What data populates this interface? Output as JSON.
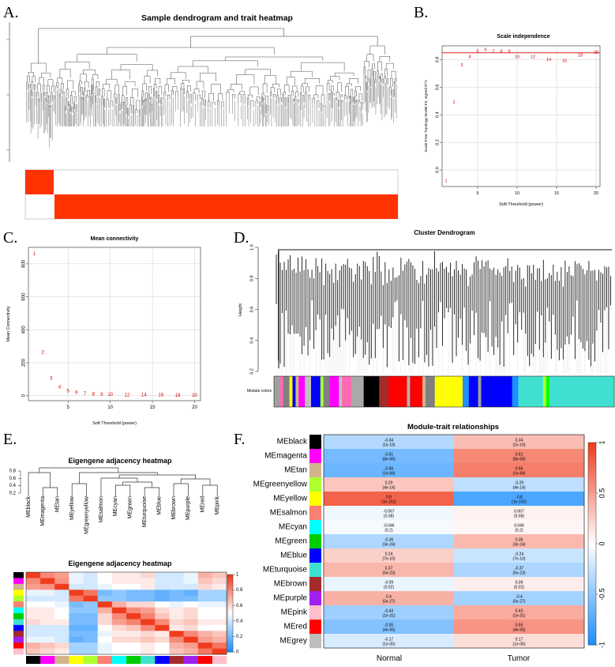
{
  "figure": {
    "panels": [
      {
        "letter": "A."
      },
      {
        "letter": "B."
      },
      {
        "letter": "C."
      },
      {
        "letter": "D."
      },
      {
        "letter": "E."
      },
      {
        "letter": "F."
      }
    ]
  },
  "chart_data": [
    {
      "id": "A",
      "type": "dendrogram",
      "title": "Sample dendrogram and trait heatmap",
      "trait_colors": [
        "#ff3300",
        "#ffffff"
      ]
    },
    {
      "id": "B",
      "type": "scatter",
      "title": "Scale independence",
      "xlabel": "Soft Threshold (power)",
      "ylabel": "Scale Free Topology Model Fit, signed R^2",
      "xlim": [
        0.5,
        20.5
      ],
      "ylim": [
        -0.12,
        0.9
      ],
      "xticks": [
        5,
        10,
        15,
        20
      ],
      "yticks": [
        0.0,
        0.2,
        0.4,
        0.6,
        0.8
      ],
      "ytick_labels": [
        "0.0",
        "0.2",
        "0.4",
        "0.6",
        "0.8"
      ],
      "hline": 0.85,
      "points": [
        {
          "x": 1,
          "y": -0.08,
          "label": "1"
        },
        {
          "x": 2,
          "y": 0.49,
          "label": "2"
        },
        {
          "x": 3,
          "y": 0.76,
          "label": "3"
        },
        {
          "x": 4,
          "y": 0.82,
          "label": "4"
        },
        {
          "x": 5,
          "y": 0.86,
          "label": "5"
        },
        {
          "x": 6,
          "y": 0.87,
          "label": "6"
        },
        {
          "x": 7,
          "y": 0.86,
          "label": "7"
        },
        {
          "x": 8,
          "y": 0.86,
          "label": "8"
        },
        {
          "x": 9,
          "y": 0.86,
          "label": "9"
        },
        {
          "x": 10,
          "y": 0.82,
          "label": "10"
        },
        {
          "x": 12,
          "y": 0.82,
          "label": "12"
        },
        {
          "x": 14,
          "y": 0.8,
          "label": "14"
        },
        {
          "x": 16,
          "y": 0.79,
          "label": "16"
        },
        {
          "x": 18,
          "y": 0.83,
          "label": "18"
        },
        {
          "x": 20,
          "y": 0.85,
          "label": "20"
        }
      ]
    },
    {
      "id": "C",
      "type": "scatter",
      "title": "Mean connectivity",
      "xlabel": "Soft Threshold (power)",
      "ylabel": "Mean Connectivity",
      "xlim": [
        0.3,
        20.7
      ],
      "ylim": [
        -30,
        900
      ],
      "xticks": [
        5,
        10,
        15,
        20
      ],
      "yticks": [
        0,
        200,
        400,
        600,
        800
      ],
      "points": [
        {
          "x": 1,
          "y": 860,
          "label": "1"
        },
        {
          "x": 2,
          "y": 262,
          "label": "2"
        },
        {
          "x": 3,
          "y": 105,
          "label": "3"
        },
        {
          "x": 4,
          "y": 52,
          "label": "4"
        },
        {
          "x": 5,
          "y": 28,
          "label": "5"
        },
        {
          "x": 6,
          "y": 18,
          "label": "6"
        },
        {
          "x": 7,
          "y": 12,
          "label": "7"
        },
        {
          "x": 8,
          "y": 9,
          "label": "8"
        },
        {
          "x": 9,
          "y": 7,
          "label": "9"
        },
        {
          "x": 10,
          "y": 6,
          "label": "10"
        },
        {
          "x": 12,
          "y": 4,
          "label": "12"
        },
        {
          "x": 14,
          "y": 3,
          "label": "14"
        },
        {
          "x": 16,
          "y": 3,
          "label": "16"
        },
        {
          "x": 18,
          "y": 2,
          "label": "18"
        },
        {
          "x": 20,
          "y": 2,
          "label": "20"
        }
      ]
    },
    {
      "id": "D",
      "type": "dendrogram",
      "title": "Cluster Dendrogram",
      "ylabel": "Height",
      "yticks": [
        0.2,
        0.4,
        0.6,
        0.8,
        1.0
      ],
      "ytick_labels": [
        "0.2",
        "0.4",
        "0.6",
        "0.8",
        "1.0"
      ],
      "color_bar_label": "Module colors",
      "module_color_segments": [
        {
          "color": "#a0a0a0",
          "weight": 2
        },
        {
          "color": "#ff69b4",
          "weight": 1
        },
        {
          "color": "#808080",
          "weight": 2
        },
        {
          "color": "#ffff00",
          "weight": 1
        },
        {
          "color": "#0000ff",
          "weight": 1
        },
        {
          "color": "#d2b48c",
          "weight": 1
        },
        {
          "color": "#ff00ff",
          "weight": 2
        },
        {
          "color": "#c0c0c0",
          "weight": 2
        },
        {
          "color": "#0000ff",
          "weight": 3
        },
        {
          "color": "#adff2f",
          "weight": 1
        },
        {
          "color": "#808080",
          "weight": 2
        },
        {
          "color": "#ff00ff",
          "weight": 3
        },
        {
          "color": "#c0c0c0",
          "weight": 1
        },
        {
          "color": "#ff69b4",
          "weight": 3
        },
        {
          "color": "#a9a9a9",
          "weight": 4
        },
        {
          "color": "#000000",
          "weight": 5
        },
        {
          "color": "#a52a2a",
          "weight": 3
        },
        {
          "color": "#ff0000",
          "weight": 6
        },
        {
          "color": "#b0b0b0",
          "weight": 1
        },
        {
          "color": "#ff0000",
          "weight": 4
        },
        {
          "color": "#d2b48c",
          "weight": 1
        },
        {
          "color": "#808080",
          "weight": 3
        },
        {
          "color": "#ffff00",
          "weight": 9
        },
        {
          "color": "#1e90ff",
          "weight": 2
        },
        {
          "color": "#0000ff",
          "weight": 3
        },
        {
          "color": "#a0a0a0",
          "weight": 1
        },
        {
          "color": "#0000ff",
          "weight": 10
        },
        {
          "color": "#1e90ff",
          "weight": 2
        },
        {
          "color": "#40e0d0",
          "weight": 8
        },
        {
          "color": "#adff2f",
          "weight": 1
        },
        {
          "color": "#00ff00",
          "weight": 1
        },
        {
          "color": "#40e0d0",
          "weight": 21
        }
      ]
    },
    {
      "id": "E1",
      "type": "dendrogram",
      "title": "Eigengene adjacency heatmap",
      "yticks": [
        0.2,
        0.4,
        0.6,
        0.8
      ],
      "ytick_labels": [
        "0.2",
        "0.4",
        "0.6",
        "0.8"
      ],
      "leaves": [
        "MEblack",
        "MEmagenta",
        "MEtan",
        "MEyellow",
        "MEgreenyellow",
        "MEsalmon",
        "MEcyan",
        "MEgreen",
        "MEturquoise",
        "MEblue",
        "MEbrown",
        "MEpurple",
        "MEred",
        "MEpink"
      ]
    },
    {
      "id": "E2",
      "type": "heatmap",
      "title": "Eigengene adjacency heatmap",
      "colorscale_ticks": [
        0,
        0.2,
        0.4,
        0.6,
        0.8,
        1
      ],
      "colorscale_tick_labels": [
        "0",
        "0.2",
        "0.4",
        "0.6",
        "0.8",
        "1"
      ],
      "module_colors": [
        "#000000",
        "#ff00ff",
        "#d2b48c",
        "#ffff00",
        "#adff2f",
        "#fa8072",
        "#00ffff",
        "#00cc00",
        "#40e0d0",
        "#0000ff",
        "#a52a2a",
        "#a020f0",
        "#ff0000",
        "#ffc0cb"
      ],
      "matrix": [
        [
          1.0,
          0.8,
          0.75,
          0.45,
          0.4,
          0.5,
          0.55,
          0.55,
          0.6,
          0.4,
          0.4,
          0.45,
          0.7,
          0.65
        ],
        [
          0.8,
          1.0,
          0.78,
          0.45,
          0.4,
          0.5,
          0.55,
          0.55,
          0.55,
          0.4,
          0.4,
          0.45,
          0.65,
          0.6
        ],
        [
          0.75,
          0.78,
          1.0,
          0.4,
          0.4,
          0.45,
          0.5,
          0.5,
          0.55,
          0.4,
          0.4,
          0.4,
          0.6,
          0.55
        ],
        [
          0.45,
          0.45,
          0.4,
          1.0,
          0.85,
          0.2,
          0.25,
          0.2,
          0.2,
          0.15,
          0.2,
          0.15,
          0.3,
          0.3
        ],
        [
          0.4,
          0.4,
          0.4,
          0.85,
          1.0,
          0.25,
          0.25,
          0.2,
          0.2,
          0.15,
          0.2,
          0.2,
          0.3,
          0.3
        ],
        [
          0.5,
          0.5,
          0.45,
          0.2,
          0.25,
          1.0,
          0.7,
          0.6,
          0.6,
          0.5,
          0.45,
          0.5,
          0.45,
          0.45
        ],
        [
          0.55,
          0.55,
          0.5,
          0.25,
          0.25,
          0.7,
          1.0,
          0.8,
          0.75,
          0.6,
          0.55,
          0.6,
          0.5,
          0.5
        ],
        [
          0.55,
          0.55,
          0.5,
          0.2,
          0.2,
          0.6,
          0.8,
          1.0,
          0.82,
          0.65,
          0.55,
          0.6,
          0.5,
          0.5
        ],
        [
          0.6,
          0.55,
          0.55,
          0.2,
          0.2,
          0.6,
          0.75,
          0.82,
          1.0,
          0.8,
          0.6,
          0.65,
          0.55,
          0.55
        ],
        [
          0.4,
          0.4,
          0.4,
          0.15,
          0.15,
          0.5,
          0.6,
          0.65,
          0.8,
          1.0,
          0.55,
          0.6,
          0.5,
          0.5
        ],
        [
          0.4,
          0.4,
          0.4,
          0.2,
          0.2,
          0.45,
          0.55,
          0.55,
          0.6,
          0.55,
          1.0,
          0.8,
          0.7,
          0.65
        ],
        [
          0.45,
          0.45,
          0.4,
          0.15,
          0.2,
          0.5,
          0.6,
          0.6,
          0.65,
          0.6,
          0.8,
          1.0,
          0.75,
          0.7
        ],
        [
          0.7,
          0.65,
          0.6,
          0.3,
          0.3,
          0.45,
          0.5,
          0.5,
          0.55,
          0.5,
          0.7,
          0.75,
          1.0,
          0.85
        ],
        [
          0.65,
          0.6,
          0.55,
          0.3,
          0.3,
          0.45,
          0.5,
          0.5,
          0.55,
          0.5,
          0.65,
          0.7,
          0.85,
          1.0
        ]
      ]
    },
    {
      "id": "F",
      "type": "heatmap",
      "title": "Module-trait relationships",
      "columns": [
        "Normal",
        "Tumor"
      ],
      "colorscale_ticks": [
        1,
        0.5,
        0,
        -0.5,
        -1
      ],
      "colorscale_tick_labels": [
        "1",
        "0.5",
        "0",
        "-0.5",
        "-1"
      ],
      "rows": [
        {
          "module": "MEblack",
          "color": "#000000",
          "values": [
            -0.34,
            0.34
          ],
          "labels": [
            "-0.34",
            "0.34"
          ],
          "pvalues": [
            "(1e-19)",
            "(1e-19)"
          ]
        },
        {
          "module": "MEmagenta",
          "color": "#ff00ff",
          "values": [
            -0.61,
            0.61
          ],
          "labels": [
            "-0.61",
            "0.61"
          ],
          "pvalues": [
            "(8e-69)",
            "(8e-69)"
          ]
        },
        {
          "module": "MEtan",
          "color": "#d2b48c",
          "values": [
            -0.66,
            0.66
          ],
          "labels": [
            "-0.66",
            "0.66"
          ],
          "pvalues": [
            "(1e-84)",
            "(1e-84)"
          ]
        },
        {
          "module": "MEgreenyellow",
          "color": "#adff2f",
          "values": [
            0.29,
            -0.29
          ],
          "labels": [
            "0.29",
            "-0.29"
          ],
          "pvalues": [
            "(4e-14)",
            "(4e-14)"
          ]
        },
        {
          "module": "MEyellow",
          "color": "#ffff00",
          "values": [
            0.8,
            -0.8
          ],
          "labels": [
            "0.8",
            "-0.8"
          ],
          "pvalues": [
            "(1e-152)",
            "(1e-152)"
          ]
        },
        {
          "module": "MEsalmon",
          "color": "#fa8072",
          "values": [
            -0.067,
            0.067
          ],
          "labels": [
            "-0.067",
            "0.067"
          ],
          "pvalues": [
            "(0.08)",
            "(0.08)"
          ]
        },
        {
          "module": "MEcyan",
          "color": "#00ffff",
          "values": [
            -0.046,
            0.046
          ],
          "labels": [
            "-0.046",
            "0.046"
          ],
          "pvalues": [
            "(0.2)",
            "(0.2)"
          ]
        },
        {
          "module": "MEgreen",
          "color": "#00cc00",
          "values": [
            -0.36,
            0.36
          ],
          "labels": [
            "-0.36",
            "0.36"
          ],
          "pvalues": [
            "(3e-24)",
            "(3e-24)"
          ]
        },
        {
          "module": "MEblue",
          "color": "#0000ff",
          "values": [
            0.24,
            -0.24
          ],
          "labels": [
            "0.24",
            "-0.24"
          ],
          "pvalues": [
            "(7e-10)",
            "(7e-10)"
          ]
        },
        {
          "module": "MEturquoise",
          "color": "#40e0d0",
          "values": [
            0.37,
            -0.37
          ],
          "labels": [
            "0.37",
            "-0.37"
          ],
          "pvalues": [
            "(5e-23)",
            "(5e-23)"
          ]
        },
        {
          "module": "MEbrown",
          "color": "#a52a2a",
          "values": [
            -0.09,
            0.09
          ],
          "labels": [
            "-0.09",
            "0.09"
          ],
          "pvalues": [
            "(0.02)",
            "(0.02)"
          ]
        },
        {
          "module": "MEpurple",
          "color": "#a020f0",
          "values": [
            0.4,
            -0.4
          ],
          "labels": [
            "0.4",
            "-0.4"
          ],
          "pvalues": [
            "(5e-27)",
            "(5e-27)"
          ]
        },
        {
          "module": "MEpink",
          "color": "#ffc0cb",
          "values": [
            -0.43,
            0.43
          ],
          "labels": [
            "-0.43",
            "0.43"
          ],
          "pvalues": [
            "(1e-31)",
            "(1e-31)"
          ]
        },
        {
          "module": "MEred",
          "color": "#ff0000",
          "values": [
            -0.55,
            0.55
          ],
          "labels": [
            "-0.55",
            "0.55"
          ],
          "pvalues": [
            "(4e-55)",
            "(4e-55)"
          ]
        },
        {
          "module": "MEgrey",
          "color": "#bebebe",
          "values": [
            -0.17,
            0.17
          ],
          "labels": [
            "-0.17",
            "0.17"
          ],
          "pvalues": [
            "(1e-05)",
            "(1e-05)"
          ]
        }
      ]
    }
  ]
}
